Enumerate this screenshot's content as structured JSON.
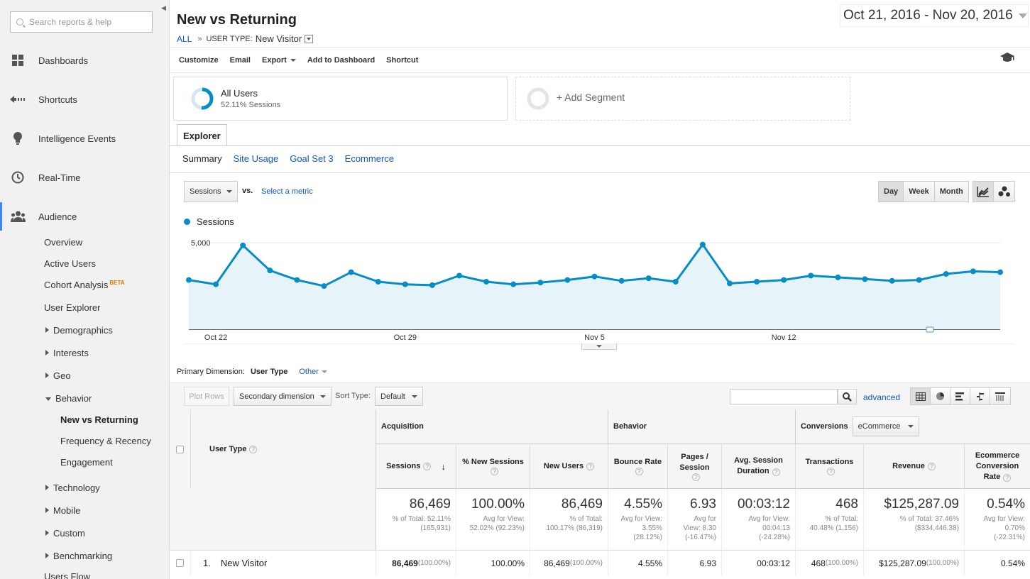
{
  "sidebar": {
    "search_placeholder": "Search reports & help",
    "nav": [
      {
        "label": "Dashboards",
        "icon": "dashboards-icon"
      },
      {
        "label": "Shortcuts",
        "icon": "shortcuts-icon"
      },
      {
        "label": "Intelligence Events",
        "icon": "lightbulb-icon"
      },
      {
        "label": "Real-Time",
        "icon": "clock-icon"
      },
      {
        "label": "Audience",
        "icon": "audience-icon"
      }
    ],
    "audience_items": {
      "overview": "Overview",
      "active_users": "Active Users",
      "cohort": "Cohort Analysis",
      "beta": "BETA",
      "user_explorer": "User Explorer",
      "demographics": "Demographics",
      "interests": "Interests",
      "geo": "Geo",
      "behavior": "Behavior",
      "new_vs_returning": "New vs Returning",
      "frequency": "Frequency & Recency",
      "engagement": "Engagement",
      "technology": "Technology",
      "mobile": "Mobile",
      "custom": "Custom",
      "benchmarking": "Benchmarking",
      "users_flow": "Users Flow"
    }
  },
  "header": {
    "title": "New vs Returning",
    "crumb_all": "ALL",
    "crumb_sep": "»",
    "crumb_key": "USER TYPE:",
    "crumb_value": "New Visitor",
    "date_range": "Oct 21, 2016 - Nov 20, 2016"
  },
  "toolbar": {
    "customize": "Customize",
    "email": "Email",
    "export": "Export",
    "add_dashboard": "Add to Dashboard",
    "shortcut": "Shortcut"
  },
  "segments": {
    "all_users": "All Users",
    "all_users_sub": "52.11% Sessions",
    "add": "+ Add Segment"
  },
  "explorer": {
    "tab": "Explorer",
    "subtabs": [
      "Summary",
      "Site Usage",
      "Goal Set 3",
      "Ecommerce"
    ]
  },
  "chart_controls": {
    "metric": "Sessions",
    "vs": "vs.",
    "select_metric": "Select a metric",
    "periods": [
      "Day",
      "Week",
      "Month"
    ],
    "active_period": "Day"
  },
  "chart_data": {
    "type": "line",
    "series": [
      {
        "name": "Sessions",
        "color": "#058dc7",
        "values": [
          2850,
          2600,
          4850,
          3400,
          2850,
          2500,
          3300,
          2750,
          2600,
          2550,
          3100,
          2750,
          2600,
          2700,
          2850,
          3050,
          2800,
          2950,
          2750,
          4900,
          2650,
          2750,
          2850,
          3100,
          3000,
          2900,
          2800,
          2850,
          3200,
          3350,
          3300
        ]
      }
    ],
    "x_start": "Oct 21",
    "x_ticks": [
      "Oct 22",
      "Oct 29",
      "Nov 5",
      "Nov 12"
    ],
    "y_ticks": [
      "5,000",
      "2,500"
    ],
    "ylim": [
      0,
      5500
    ]
  },
  "table": {
    "primary_dimension_label": "Primary Dimension:",
    "primary_dimension": "User Type",
    "other": "Other",
    "plot_rows": "Plot Rows",
    "secondary_dimension": "Secondary dimension",
    "sort_type_label": "Sort Type:",
    "sort_type": "Default",
    "advanced": "advanced",
    "groups": {
      "acquisition": "Acquisition",
      "behavior": "Behavior",
      "conversions": "Conversions",
      "conversions_select": "eCommerce"
    },
    "dim_header": "User Type",
    "headers": {
      "sessions": "Sessions",
      "new_sessions": "% New Sessions",
      "new_users": "New Users",
      "bounce": "Bounce Rate",
      "pages_1": "Pages /",
      "pages_2": "Session",
      "duration_1": "Avg. Session",
      "duration_2": "Duration",
      "transactions": "Transactions",
      "revenue": "Revenue",
      "ecr_1": "Ecommerce",
      "ecr_2": "Conversion",
      "ecr_3": "Rate"
    },
    "totals": {
      "sessions": {
        "big": "86,469",
        "s1": "% of Total: 52.11%",
        "s2": "(165,931)"
      },
      "new_sessions": {
        "big": "100.00%",
        "s1": "Avg for View:",
        "s2": "52.02% (92.23%)"
      },
      "new_users": {
        "big": "86,469",
        "s1": "% of Total:",
        "s2": "100.17% (86,319)"
      },
      "bounce": {
        "big": "4.55%",
        "s1": "Avg for View:",
        "s2": "3.55%",
        "s3": "(28.12%)"
      },
      "pages": {
        "big": "6.93",
        "s1": "Avg for",
        "s2": "View: 8.30",
        "s3": "(-16.47%)"
      },
      "duration": {
        "big": "00:03:12",
        "s1": "Avg for View:",
        "s2": "00:04:13",
        "s3": "(-24.28%)"
      },
      "transactions": {
        "big": "468",
        "s1": "% of Total:",
        "s2": "40.48% (1,156)"
      },
      "revenue": {
        "big": "$125,287.09",
        "s1": "% of Total: 37.46%",
        "s2": "($334,446.38)"
      },
      "ecr": {
        "big": "0.54%",
        "s1": "Avg for View:",
        "s2": "0.70%",
        "s3": "(-22.31%)"
      }
    },
    "row": {
      "index": "1.",
      "name": "New Visitor",
      "sessions": "86,469",
      "sessions_pct": "(100.00%)",
      "new_sessions": "100.00%",
      "new_users": "86,469",
      "new_users_pct": "(100.00%)",
      "bounce": "4.55%",
      "pages": "6.93",
      "duration": "00:03:12",
      "transactions": "468",
      "transactions_pct": "(100.00%)",
      "revenue": "$125,287.09",
      "revenue_pct": "(100.00%)",
      "ecr": "0.54%"
    }
  }
}
